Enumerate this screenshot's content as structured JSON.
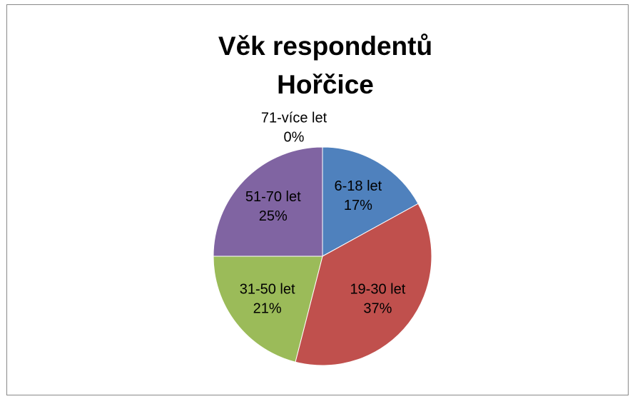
{
  "chart_data": {
    "type": "pie",
    "title": "Věk respondentů Hořčice",
    "categories": [
      "6-18 let",
      "19-30 let",
      "31-50 let",
      "51-70 let",
      "71-více let"
    ],
    "values": [
      17,
      37,
      21,
      25,
      0
    ],
    "value_labels": [
      "17%",
      "37%",
      "21%",
      "25%",
      "0%"
    ],
    "colors": [
      "#4f81bd",
      "#c0504d",
      "#9bbb59",
      "#8064a2",
      "#4bacc6"
    ]
  }
}
